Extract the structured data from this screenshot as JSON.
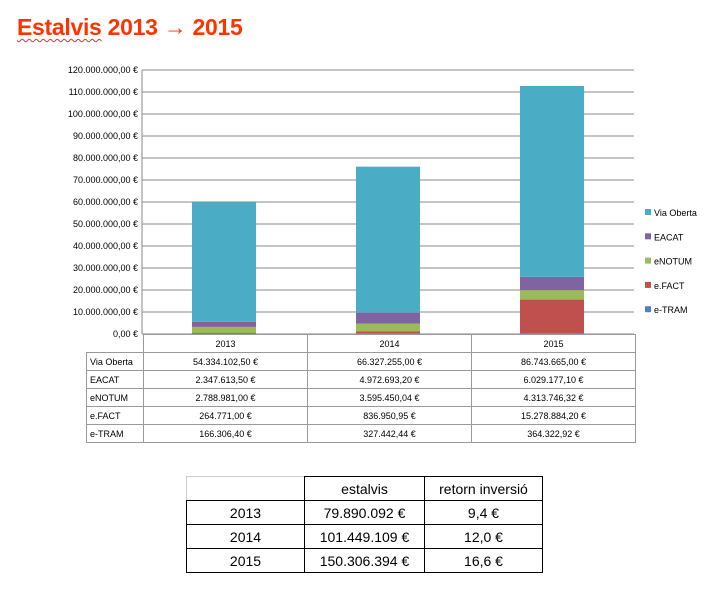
{
  "title": {
    "word": "Estalvis",
    "rest": "2013 → 2015"
  },
  "chart_data": {
    "type": "bar",
    "stacked": true,
    "categories": [
      "2013",
      "2014",
      "2015"
    ],
    "ylim": [
      0,
      120000000
    ],
    "yticks": [
      "0,00 €",
      "10.000.000,00 €",
      "20.000.000,00 €",
      "30.000.000,00 €",
      "40.000.000,00 €",
      "50.000.000,00 €",
      "60.000.000,00 €",
      "70.000.000,00 €",
      "80.000.000,00 €",
      "90.000.000,00 €",
      "100.000.000,00 €",
      "110.000.000,00 €",
      "120.000.000,00 €"
    ],
    "legend_position": "right",
    "series": [
      {
        "name": "e-TRAM",
        "color": "#4f81bd",
        "values": [
          166306.4,
          327442.44,
          364322.92
        ],
        "labels": [
          "166.306,40 €",
          "327.442,44 €",
          "364.322,92 €"
        ]
      },
      {
        "name": "e.FACT",
        "color": "#c0504d",
        "values": [
          264771.0,
          836950.95,
          15278884.2
        ],
        "labels": [
          "264.771,00 €",
          "836.950,95 €",
          "15.278.884,20 €"
        ]
      },
      {
        "name": "eNOTUM",
        "color": "#9bbb59",
        "values": [
          2788981.0,
          3595450.04,
          4313746.32
        ],
        "labels": [
          "2.788.981,00 €",
          "3.595.450,04 €",
          "4.313.746,32 €"
        ]
      },
      {
        "name": "EACAT",
        "color": "#8064a2",
        "values": [
          2347613.5,
          4972693.2,
          6029177.1
        ],
        "labels": [
          "2.347.613,50 €",
          "4.972.693,20 €",
          "6.029.177,10 €"
        ]
      },
      {
        "name": "Via Oberta",
        "color": "#4bacc6",
        "values": [
          54334102.5,
          66327255.0,
          86743665.0
        ],
        "labels": [
          "54.334.102,50 €",
          "66.327.255,00 €",
          "86.743.665,00 €"
        ]
      }
    ]
  },
  "summary": {
    "headers": [
      "estalvis",
      "retorn inversió"
    ],
    "rows": [
      [
        "2013",
        "79.890.092 €",
        "9,4 €"
      ],
      [
        "2014",
        "101.449.109 €",
        "12,0 €"
      ],
      [
        "2015",
        "150.306.394 €",
        "16,6 €"
      ]
    ]
  }
}
